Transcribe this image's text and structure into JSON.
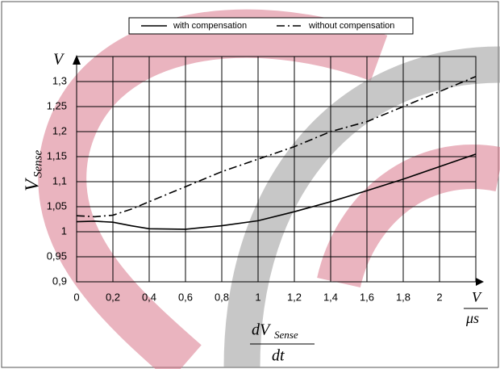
{
  "chart_data": {
    "type": "line",
    "legend_position": "top",
    "x_label": {
      "numerator": "dV",
      "subscript": "Sense",
      "denominator": "dt"
    },
    "x_unit": {
      "numerator": "V",
      "denominator": "μs"
    },
    "y_label": {
      "main": "V",
      "subscript": "Sense"
    },
    "y_unit": "V",
    "grid": true,
    "xlim": [
      0,
      2.2
    ],
    "xticks": [
      0,
      {
        "value": 0.2,
        "label": "0,2"
      },
      {
        "value": 0.4,
        "label": "0,4"
      },
      {
        "value": 0.6,
        "label": "0,6"
      },
      {
        "value": 0.8,
        "label": "0,8"
      },
      1,
      {
        "value": 1.2,
        "label": "1,2"
      },
      {
        "value": 1.4,
        "label": "1,4"
      },
      {
        "value": 1.6,
        "label": "1,6"
      },
      {
        "value": 1.8,
        "label": "1,8"
      },
      2
    ],
    "ylim": [
      0.9,
      1.35
    ],
    "yticks": [
      {
        "value": 0.9,
        "label": "0,9"
      },
      {
        "value": 0.95,
        "label": "0,95"
      },
      1,
      {
        "value": 1.05,
        "label": "1,05"
      },
      {
        "value": 1.1,
        "label": "1,1"
      },
      {
        "value": 1.15,
        "label": "1,15"
      },
      {
        "value": 1.2,
        "label": "1,2"
      },
      {
        "value": 1.25,
        "label": "1,25"
      },
      {
        "value": 1.3,
        "label": "1,3"
      }
    ],
    "x": [
      0,
      0.1,
      0.2,
      0.3,
      0.4,
      0.6,
      0.8,
      1.0,
      1.2,
      1.4,
      1.6,
      1.8,
      2.0,
      2.2
    ],
    "series": [
      {
        "name": "with compensation",
        "color": "#000000",
        "dash": "solid",
        "values": [
          1.02,
          1.021,
          1.019,
          1.012,
          1.006,
          1.005,
          1.012,
          1.022,
          1.04,
          1.06,
          1.082,
          1.105,
          1.13,
          1.155
        ]
      },
      {
        "name": "without compensation",
        "color": "#000000",
        "dash": "dashdot",
        "values": [
          1.032,
          1.03,
          1.033,
          1.045,
          1.06,
          1.09,
          1.12,
          1.145,
          1.17,
          1.2,
          1.22,
          1.25,
          1.28,
          1.31
        ]
      }
    ]
  }
}
